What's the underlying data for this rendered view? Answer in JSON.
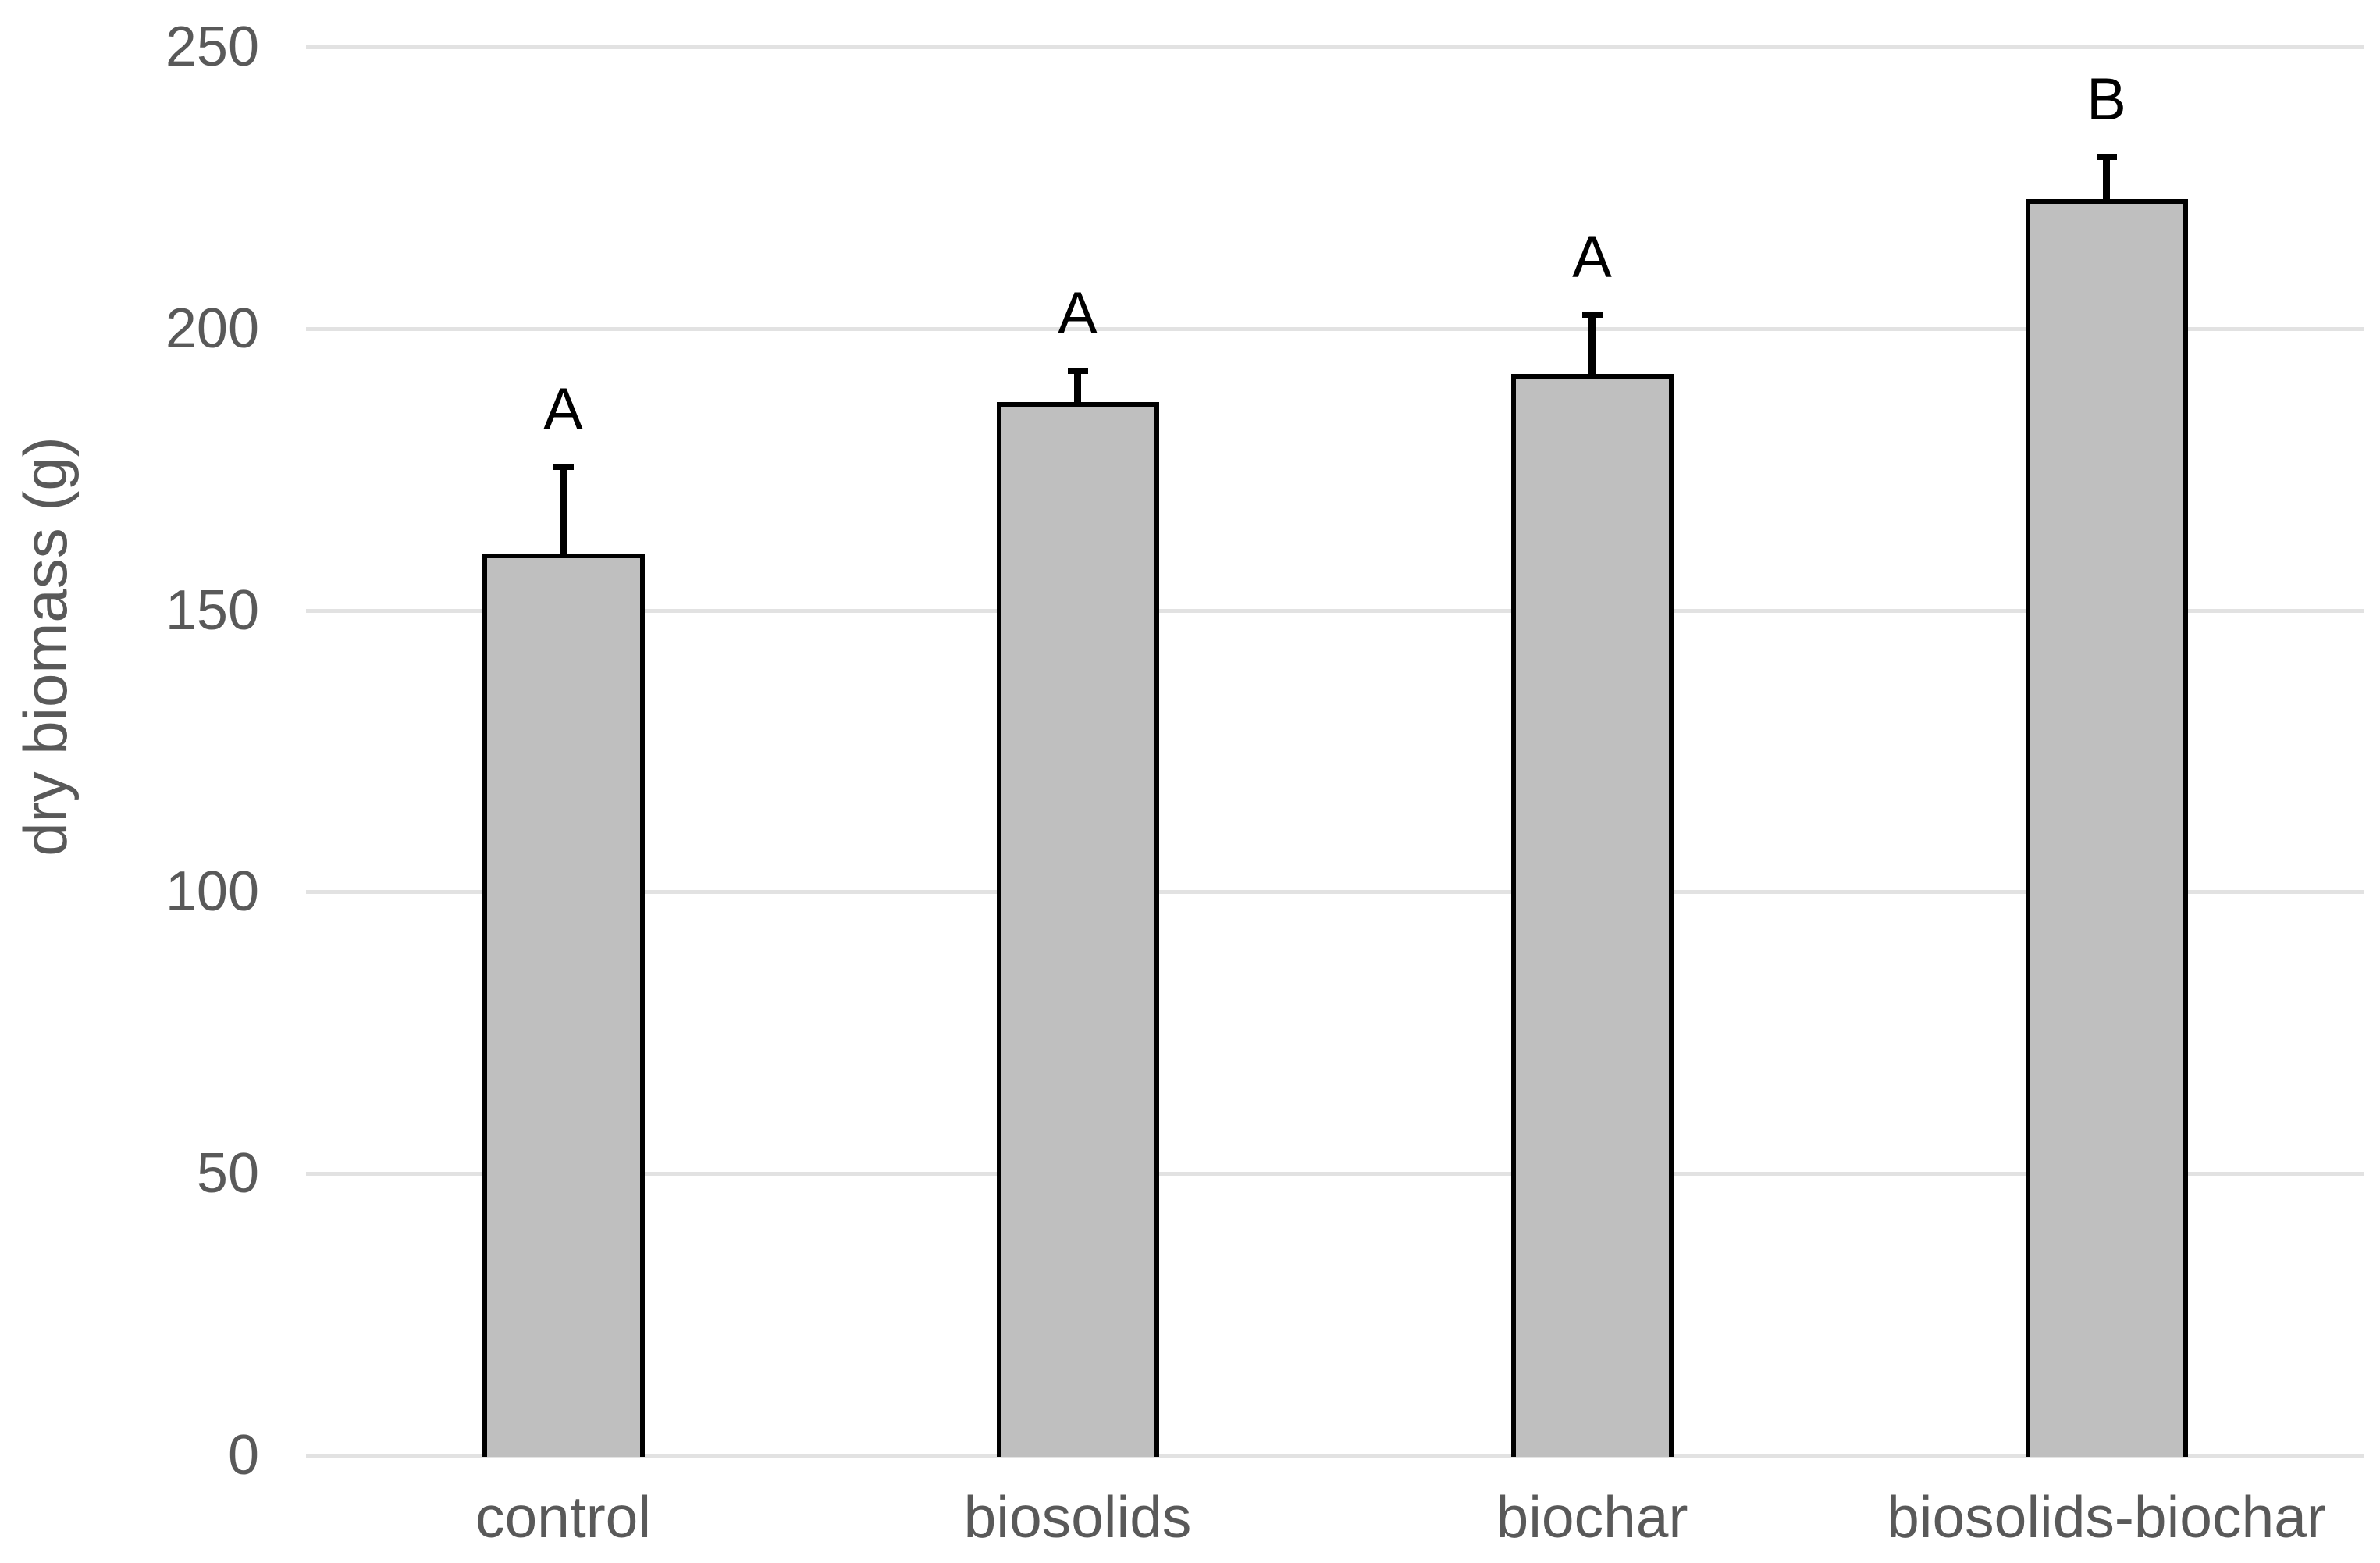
{
  "chart_data": {
    "type": "bar",
    "title": "",
    "categories": [
      "control",
      "biosolids",
      "biochar",
      "biosolids-biochar"
    ],
    "values": [
      160,
      187,
      192,
      223
    ],
    "error_upper": [
      16,
      6,
      11,
      8
    ],
    "significance_letters": [
      "A",
      "A",
      "A",
      "B"
    ],
    "xlabel": "",
    "ylabel": "dry biomass (g)",
    "ylim": [
      0,
      250
    ],
    "yticks": [
      0,
      50,
      100,
      150,
      200,
      250
    ],
    "grid": "horizontal-only",
    "legend_position": "none",
    "colors": {
      "bar_fill": "#bfbfbf",
      "bar_border": "#000000",
      "error_bar": "#000000",
      "gridline": "#e2e2e2",
      "axis_text": "#595959",
      "letter_text": "#000000",
      "background": "#ffffff"
    }
  }
}
